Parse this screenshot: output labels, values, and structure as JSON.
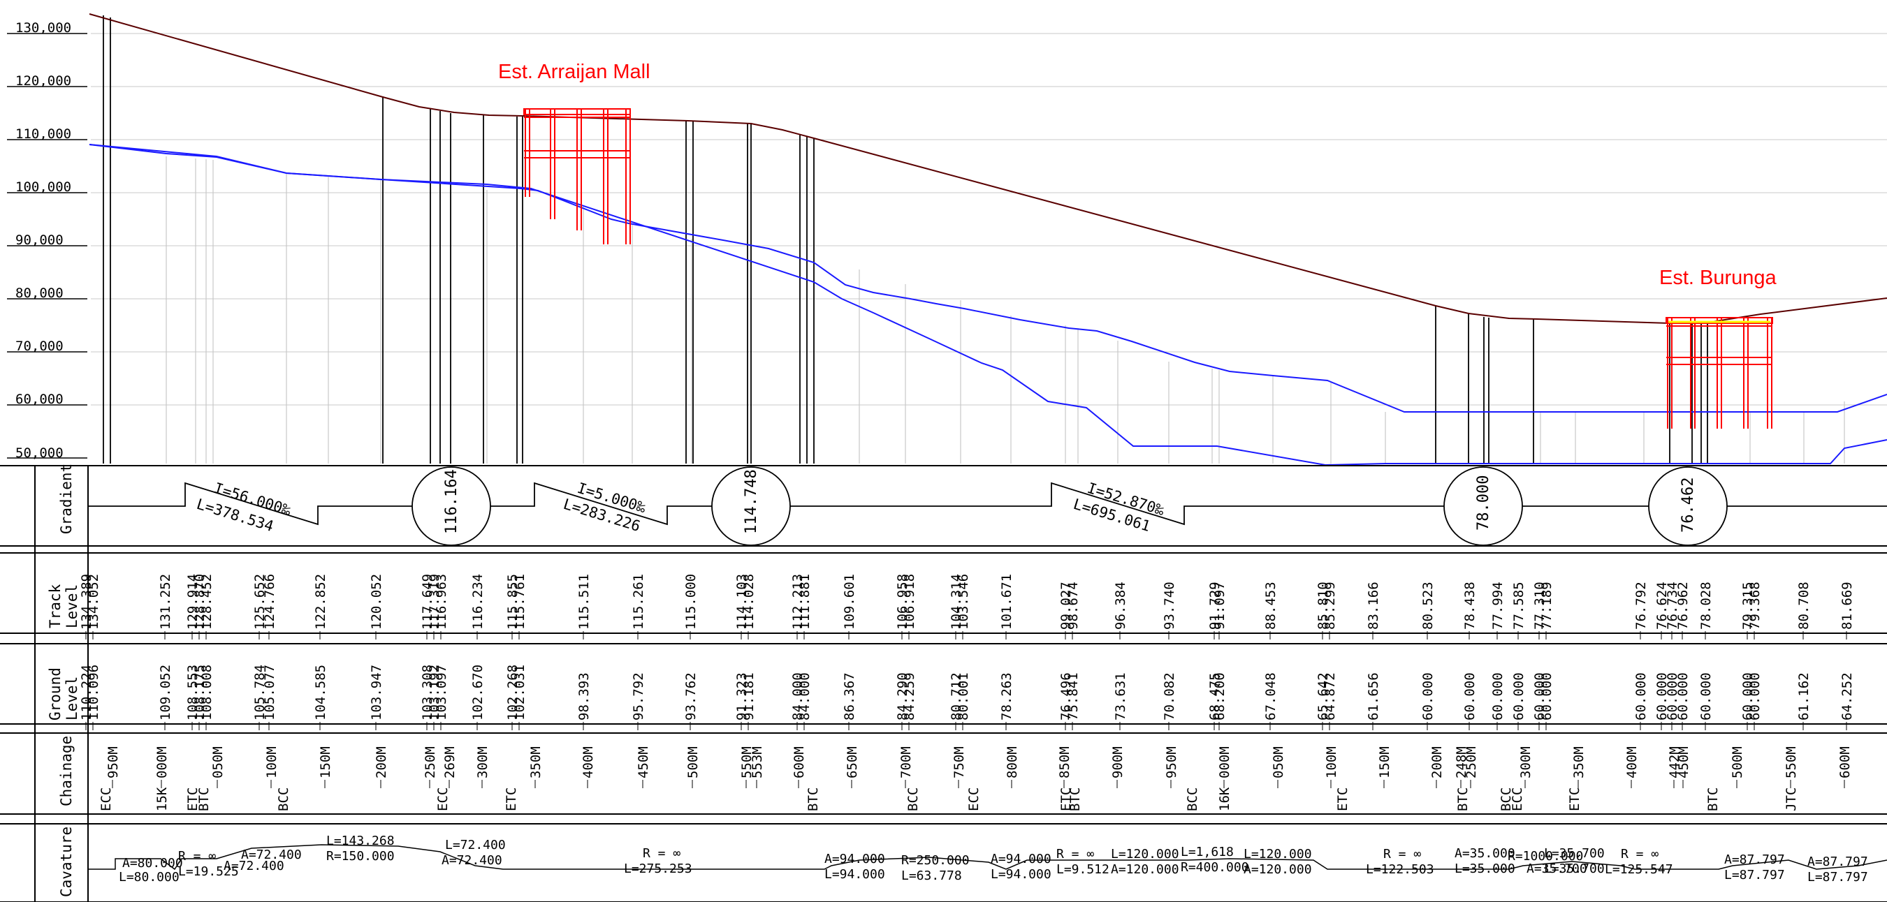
{
  "profile": {
    "elevation_labels": [
      "130,000",
      "120,000",
      "110,000",
      "100,000",
      "90,000",
      "80,000",
      "70,000",
      "60,000",
      "50,000"
    ],
    "stations": [
      "Est. Arraijan Mall",
      "Est. Burunga"
    ]
  },
  "rows": {
    "gradient": "Gradient",
    "track_level": [
      "Track",
      "Level"
    ],
    "ground_level": [
      "Ground",
      "Level"
    ],
    "chainage": "Chainage",
    "curvature": "Cavature"
  },
  "gradient": {
    "segments": [
      {
        "i": "I=56.000‰",
        "l": "L=378.534"
      },
      {
        "i": "I=5.000‰",
        "l": "L=283.226"
      },
      {
        "i": "I=52.870‰",
        "l": "L=695.061"
      }
    ],
    "vertical_curves": [
      "116.164",
      "114.748",
      "78.000",
      "76.462"
    ]
  },
  "track_levels": [
    "134.389",
    "134.052",
    "131.252",
    "129.914",
    "128.870",
    "128.452",
    "125.652",
    "124.766",
    "122.852",
    "120.052",
    "117.649",
    "117.319",
    "116.963",
    "116.234",
    "115.855",
    "115.761",
    "115.511",
    "115.261",
    "115.000",
    "114.103",
    "114.028",
    "112.213",
    "111.881",
    "109.601",
    "106.958",
    "106.918",
    "104.314",
    "103.546",
    "101.671",
    "99.027",
    "98.674",
    "96.384",
    "93.740",
    "91.729",
    "91.097",
    "88.453",
    "85.810",
    "85.299",
    "83.166",
    "80.523",
    "78.438",
    "77.994",
    "77.585",
    "77.310",
    "77.189",
    "76.792",
    "76.624",
    "76.734",
    "76.962",
    "78.028",
    "79.315",
    "79.368",
    "80.708",
    "81.669"
  ],
  "ground_levels": [
    "110.224",
    "110.096",
    "109.052",
    "108.553",
    "108.175",
    "108.008",
    "105.784",
    "105.077",
    "104.585",
    "103.947",
    "103.308",
    "103.192",
    "103.097",
    "102.670",
    "102.268",
    "102.031",
    "98.393",
    "95.792",
    "93.762",
    "91.323",
    "91.181",
    "84.000",
    "84.000",
    "86.367",
    "84.290",
    "84.259",
    "80.712",
    "80.001",
    "78.263",
    "76.496",
    "75.841",
    "73.631",
    "70.082",
    "68.475",
    "68.200",
    "67.048",
    "65.642",
    "64.872",
    "61.656",
    "60.000",
    "60.000",
    "60.000",
    "60.000",
    "60.000",
    "60.000",
    "60.000",
    "60.000",
    "60.000",
    "60.000",
    "60.000",
    "60.000",
    "60.000",
    "61.162",
    "64.252"
  ],
  "chainages": [
    "950M",
    "000M",
    "050M",
    "100M",
    "150M",
    "200M",
    "250M",
    "269M",
    "300M",
    "350M",
    "400M",
    "450M",
    "500M",
    "550M",
    "553M",
    "600M",
    "650M",
    "700M",
    "750M",
    "800M",
    "850M",
    "900M",
    "950M",
    "000M",
    "050M",
    "100M",
    "150M",
    "200M",
    "248M",
    "250M",
    "300M",
    "350M",
    "400M",
    "442M",
    "450M",
    "500M",
    "550M",
    "600M"
  ],
  "chainage_extra": [
    "15K",
    "16K"
  ],
  "chainage_marks": [
    "ECC",
    "ETC",
    "BTC",
    "BCC",
    "ECC",
    "ETC",
    "BTC",
    "BCC",
    "ECC",
    "ETC",
    "BTC",
    "BCC",
    "ETC",
    "BTC",
    "BCC",
    "ECC",
    "ETC",
    "BTC",
    "JTC",
    "ETC"
  ],
  "curvature": [
    "A=80.000",
    "L=80.000",
    "R = ∞",
    "L=19.525",
    "A=72.400",
    "A=72.400",
    "L=143.268",
    "R=150.000",
    "L=72.400",
    "A=72.400",
    "R = ∞",
    "L=275.253",
    "A=94.000",
    "L=94.000",
    "R=250.000",
    "L=63.778",
    "A=94.000",
    "L=94.000",
    "R = ∞",
    "L=9.512",
    "L=120.000",
    "A=120.000",
    "L=1,618",
    "R=400.000",
    "L=120.000",
    "A=120.000",
    "R = ∞",
    "L=122.503",
    "A=35.000",
    "L=35.000",
    "R=1000.000",
    "L=35.700",
    "A=35.700",
    "L=35.700",
    "R = ∞",
    "L=125.547",
    "A=87.797",
    "L=87.797",
    "A=87.797",
    "L=87.797"
  ],
  "colors": {
    "track": "#5a0000",
    "ground": "#1a1aff",
    "station": "#ff0000",
    "grid": "#c0c0c0",
    "platform_top": "#ffff00"
  }
}
